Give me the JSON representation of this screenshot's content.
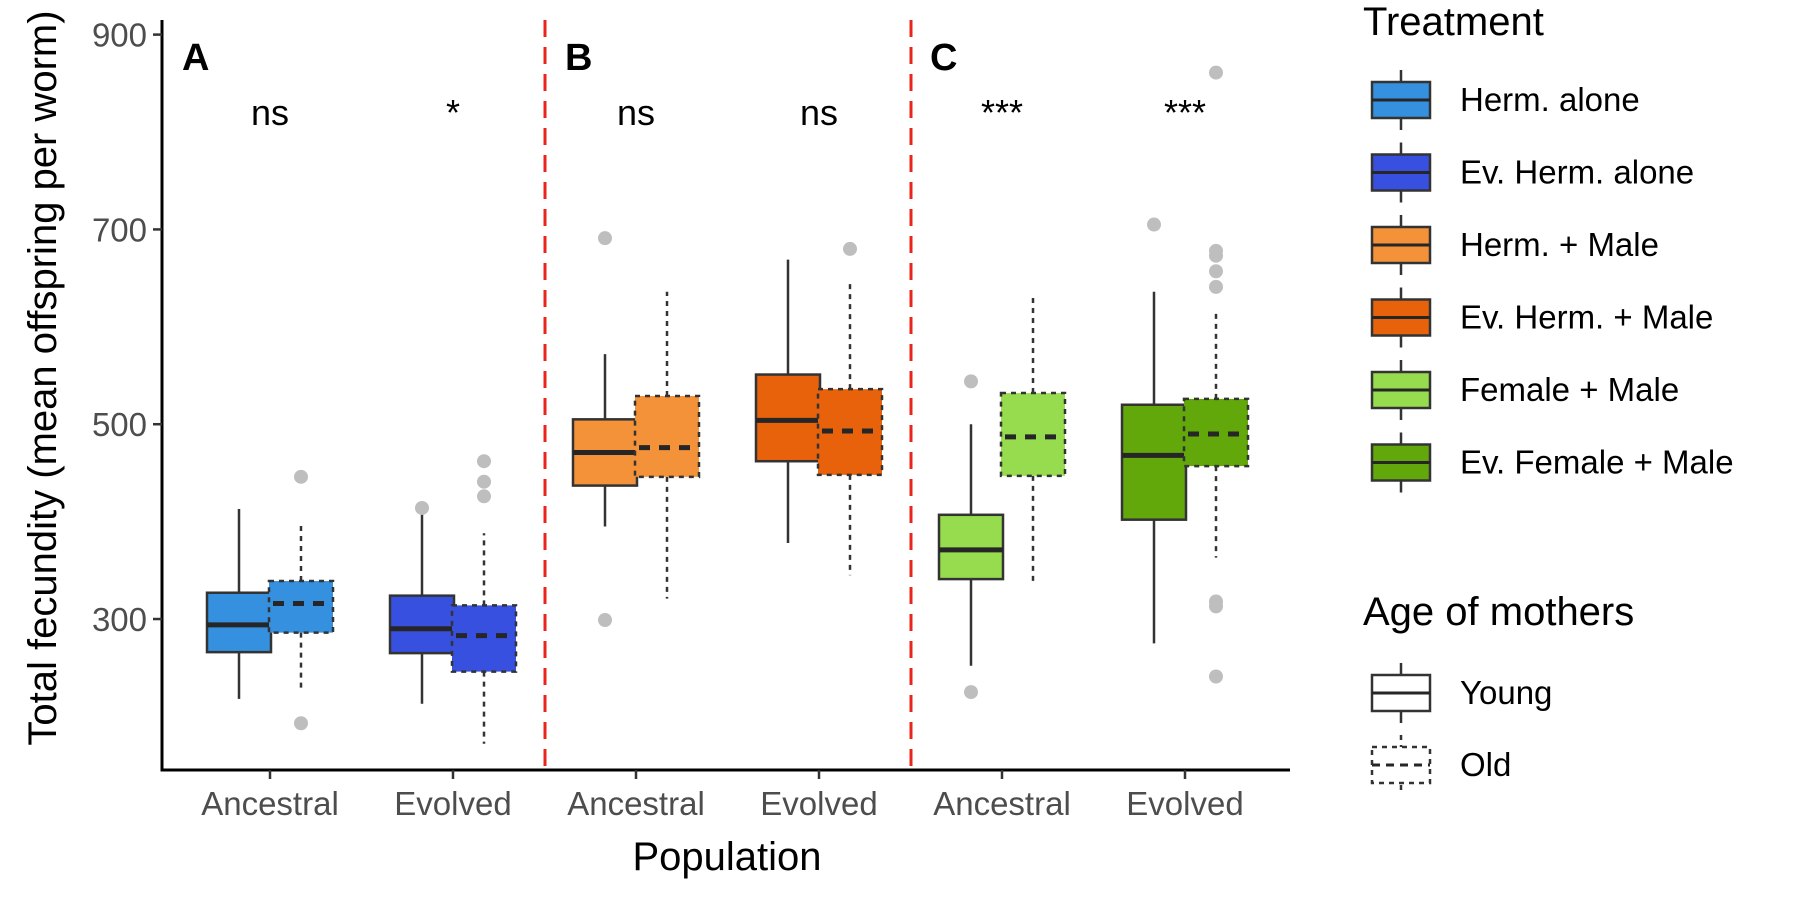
{
  "chart_data": {
    "type": "boxplot",
    "ylabel": "Total fecundity (mean offspring per worm)",
    "xlabel": "Population",
    "ylim": [
      145,
      915
    ],
    "yticks": [
      300,
      500,
      700,
      900
    ],
    "y_tick_labels": [
      "300",
      "500",
      "700",
      "900"
    ],
    "categories": [
      "Ancestral",
      "Evolved",
      "Ancestral",
      "Evolved",
      "Ancestral",
      "Evolved"
    ],
    "panel_labels": [
      "A",
      "B",
      "C"
    ],
    "significance": [
      "ns",
      "*",
      "ns",
      "ns",
      "***",
      "***"
    ],
    "colors": {
      "herm_alone": "#3590e0",
      "ev_herm_alone": "#3850e0",
      "herm_male": "#f39238",
      "ev_herm_male": "#e8620c",
      "female_male": "#97dc4e",
      "ev_female_male": "#62a80a",
      "outlier": "#bebebe",
      "divider": "#e8241c"
    },
    "legend": {
      "treatment_title": "Treatment",
      "treatment": [
        {
          "label": "Herm. alone",
          "color": "#3590e0"
        },
        {
          "label": "Ev. Herm. alone",
          "color": "#3850e0"
        },
        {
          "label": "Herm. + Male",
          "color": "#f39238"
        },
        {
          "label": "Ev. Herm. + Male",
          "color": "#e8620c"
        },
        {
          "label": "Female + Male",
          "color": "#97dc4e"
        },
        {
          "label": "Ev. Female + Male",
          "color": "#62a80a"
        }
      ],
      "age_title": "Age of mothers",
      "age": [
        {
          "label": "Young",
          "style": "solid"
        },
        {
          "label": "Old",
          "style": "dashed"
        }
      ]
    },
    "boxes": [
      {
        "group": 0,
        "age": "Young",
        "treatment": "Herm. alone",
        "color": "#3590e0",
        "min": 218,
        "q1": 266,
        "median": 294,
        "q3": 327,
        "max": 413,
        "outliers": []
      },
      {
        "group": 0,
        "age": "Old",
        "treatment": "Herm. alone",
        "color": "#3590e0",
        "min": 228,
        "q1": 286,
        "median": 316,
        "q3": 339,
        "max": 398,
        "outliers": [
          193,
          446
        ]
      },
      {
        "group": 1,
        "age": "Young",
        "treatment": "Ev. Herm. alone",
        "color": "#3850e0",
        "min": 213,
        "q1": 265,
        "median": 290,
        "q3": 324,
        "max": 411,
        "outliers": [
          414
        ]
      },
      {
        "group": 1,
        "age": "Old",
        "treatment": "Ev. Herm. alone",
        "color": "#3850e0",
        "min": 172,
        "q1": 246,
        "median": 283,
        "q3": 314,
        "max": 388,
        "outliers": [
          426,
          441,
          462
        ]
      },
      {
        "group": 2,
        "age": "Young",
        "treatment": "Herm. + Male",
        "color": "#f39238",
        "min": 395,
        "q1": 437,
        "median": 471,
        "q3": 505,
        "max": 572,
        "outliers": [
          299,
          691
        ]
      },
      {
        "group": 2,
        "age": "Old",
        "treatment": "Herm. + Male",
        "color": "#f39238",
        "min": 321,
        "q1": 446,
        "median": 476,
        "q3": 529,
        "max": 636,
        "outliers": []
      },
      {
        "group": 3,
        "age": "Young",
        "treatment": "Ev. Herm. + Male",
        "color": "#e8620c",
        "min": 378,
        "q1": 462,
        "median": 504,
        "q3": 551,
        "max": 669,
        "outliers": []
      },
      {
        "group": 3,
        "age": "Old",
        "treatment": "Ev. Herm. + Male",
        "color": "#e8620c",
        "min": 345,
        "q1": 448,
        "median": 493,
        "q3": 536,
        "max": 645,
        "outliers": [
          680
        ]
      },
      {
        "group": 4,
        "age": "Young",
        "treatment": "Female + Male",
        "color": "#97dc4e",
        "min": 252,
        "q1": 341,
        "median": 371,
        "q3": 407,
        "max": 500,
        "outliers": [
          225,
          544
        ]
      },
      {
        "group": 4,
        "age": "Old",
        "treatment": "Female + Male",
        "color": "#97dc4e",
        "min": 338,
        "q1": 447,
        "median": 487,
        "q3": 532,
        "max": 633,
        "outliers": []
      },
      {
        "group": 5,
        "age": "Young",
        "treatment": "Ev. Female + Male",
        "color": "#62a80a",
        "min": 275,
        "q1": 402,
        "median": 468,
        "q3": 520,
        "max": 636,
        "outliers": [
          705
        ]
      },
      {
        "group": 5,
        "age": "Old",
        "treatment": "Ev. Female + Male",
        "color": "#62a80a",
        "min": 363,
        "q1": 457,
        "median": 490,
        "q3": 526,
        "max": 618,
        "outliers": [
          241,
          313,
          318,
          641,
          657,
          673,
          678,
          861
        ]
      }
    ]
  }
}
